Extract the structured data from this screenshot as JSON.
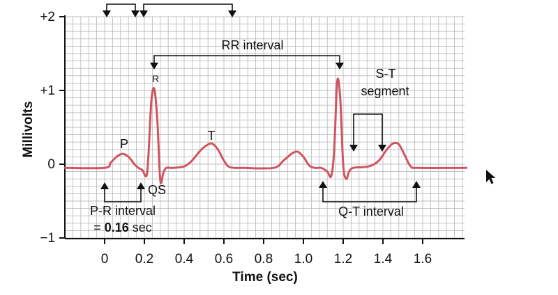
{
  "chart_data": {
    "type": "line",
    "title": "",
    "xlabel": "Time (sec)",
    "ylabel": "Millivolts",
    "xlim": [
      -0.2,
      1.82
    ],
    "ylim": [
      -1,
      2
    ],
    "x_ticks": [
      "0",
      "0.2",
      "0.4",
      "0.6",
      "0.8",
      "1.0",
      "1.2",
      "1.4",
      "1.6"
    ],
    "x_tick_values": [
      0,
      0.2,
      0.4,
      0.6,
      0.8,
      1.0,
      1.2,
      1.4,
      1.6
    ],
    "y_ticks": [
      "+2",
      "+1",
      "0",
      "−1"
    ],
    "y_tick_values": [
      2,
      1,
      0,
      -1
    ],
    "grid": true,
    "series": [
      {
        "name": "",
        "color": "#cf5560",
        "x": [
          -0.2,
          0.0,
          0.03,
          0.06,
          0.09,
          0.12,
          0.15,
          0.17,
          0.19,
          0.21,
          0.22,
          0.235,
          0.25,
          0.265,
          0.28,
          0.295,
          0.31,
          0.34,
          0.4,
          0.44,
          0.48,
          0.51,
          0.54,
          0.57,
          0.6,
          0.63,
          0.7,
          0.85,
          0.9,
          0.94,
          0.97,
          1.0,
          1.03,
          1.06,
          1.09,
          1.12,
          1.14,
          1.155,
          1.17,
          1.185,
          1.2,
          1.215,
          1.23,
          1.25,
          1.3,
          1.34,
          1.38,
          1.42,
          1.45,
          1.48,
          1.51,
          1.54,
          1.58,
          1.82
        ],
        "y": [
          -0.05,
          -0.05,
          0.02,
          0.1,
          0.14,
          0.1,
          0.0,
          -0.05,
          -0.08,
          -0.16,
          0.1,
          0.85,
          1.02,
          0.6,
          -0.22,
          -0.12,
          -0.05,
          -0.05,
          -0.03,
          0.05,
          0.18,
          0.25,
          0.28,
          0.2,
          0.05,
          -0.04,
          -0.05,
          -0.05,
          0.05,
          0.14,
          0.17,
          0.1,
          -0.02,
          -0.05,
          -0.05,
          -0.1,
          -0.16,
          0.2,
          1.12,
          0.9,
          0.0,
          -0.2,
          -0.1,
          -0.05,
          -0.04,
          -0.02,
          0.05,
          0.2,
          0.28,
          0.27,
          0.12,
          -0.03,
          -0.05,
          -0.05
        ]
      }
    ],
    "annotations": {
      "p": "P",
      "r": "R",
      "t": "T",
      "qs": "QS",
      "rr": "RR interval",
      "st_line1": "S-T",
      "st_line2": "segment",
      "pr_line1": "P-R interval",
      "pr_line2_prefix": "= ",
      "pr_line2_value": "0.16",
      "pr_line2_suffix": " sec",
      "qt": "Q-T interval"
    }
  }
}
